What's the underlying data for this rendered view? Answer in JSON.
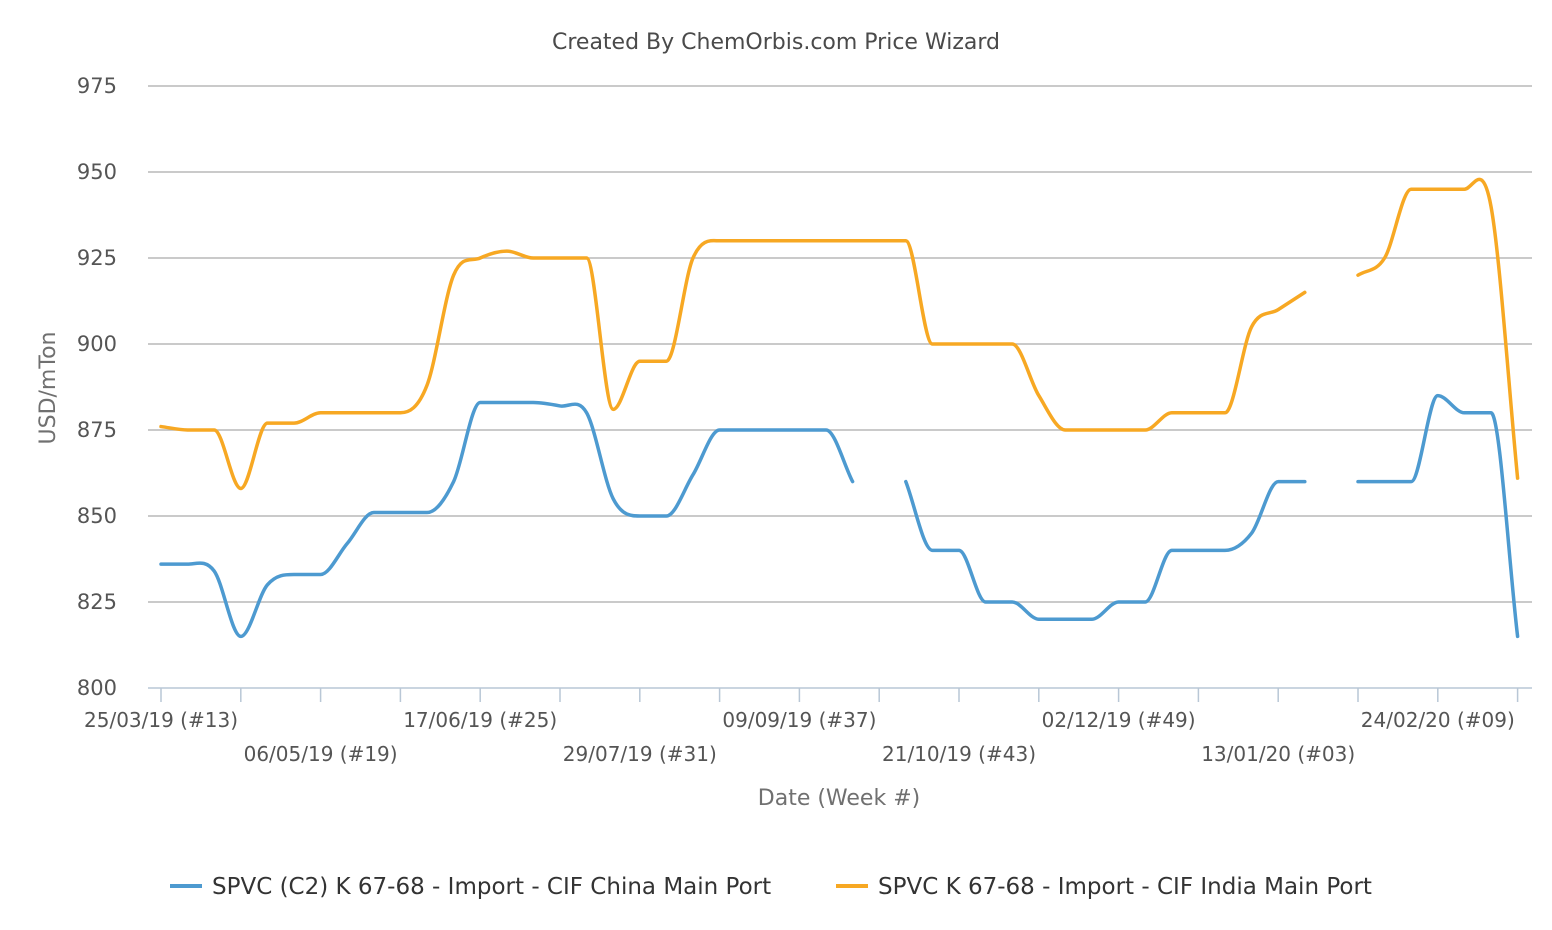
{
  "chart_data": {
    "type": "line",
    "title": "Created By ChemOrbis.com Price Wizard",
    "xlabel": "Date (Week #)",
    "ylabel": "USD/mTon",
    "ylim": [
      800,
      975
    ],
    "yticks": [
      800,
      825,
      850,
      875,
      900,
      925,
      950,
      975
    ],
    "grid": true,
    "legend_position": "bottom",
    "x_unit": "weeks starting 25/03/19 (#13)",
    "x_tick_labels": [
      {
        "week": 0,
        "label": "25/03/19 (#13)"
      },
      {
        "week": 6,
        "label": "06/05/19 (#19)"
      },
      {
        "week": 12,
        "label": "17/06/19 (#25)"
      },
      {
        "week": 18,
        "label": "29/07/19 (#31)"
      },
      {
        "week": 24,
        "label": "09/09/19 (#37)"
      },
      {
        "week": 30,
        "label": "21/10/19 (#43)"
      },
      {
        "week": 36,
        "label": "02/12/19 (#49)"
      },
      {
        "week": 42,
        "label": "13/01/20 (#03)"
      },
      {
        "week": 48,
        "label": "24/02/20 (#09)"
      }
    ],
    "x_minor_ticks": [
      0,
      3,
      6,
      9,
      12,
      15,
      18,
      21,
      24,
      27,
      30,
      33,
      36,
      39,
      42,
      45,
      48,
      51
    ],
    "x": [
      0,
      1,
      2,
      3,
      4,
      5,
      6,
      7,
      8,
      9,
      10,
      11,
      12,
      13,
      14,
      15,
      16,
      17,
      18,
      19,
      20,
      21,
      22,
      23,
      24,
      25,
      26,
      27,
      28,
      29,
      30,
      31,
      32,
      33,
      34,
      35,
      36,
      37,
      38,
      39,
      40,
      41,
      42,
      43,
      44,
      45,
      46,
      47,
      48,
      49,
      50,
      51
    ],
    "series": [
      {
        "name": "SPVC (C2) K 67-68 - Import - CIF China Main Port",
        "color": "#4d9ad0",
        "values": [
          836,
          836,
          834,
          815,
          830,
          833,
          833,
          842,
          851,
          851,
          851,
          860,
          883,
          883,
          883,
          882,
          880,
          855,
          850,
          850,
          862,
          875,
          875,
          875,
          875,
          875,
          860,
          null,
          860,
          840,
          840,
          825,
          825,
          820,
          820,
          820,
          825,
          825,
          840,
          840,
          840,
          845,
          860,
          860,
          null,
          860,
          860,
          860,
          885,
          880,
          880,
          815
        ]
      },
      {
        "name": "SPVC K 67-68 - Import - CIF India Main Port",
        "color": "#f7a823",
        "values": [
          876,
          875,
          875,
          858,
          877,
          877,
          880,
          880,
          880,
          880,
          888,
          920,
          925,
          927,
          925,
          925,
          925,
          881,
          895,
          895,
          925,
          930,
          930,
          930,
          930,
          930,
          930,
          930,
          930,
          900,
          900,
          900,
          900,
          885,
          875,
          875,
          875,
          875,
          880,
          880,
          880,
          905,
          910,
          915,
          null,
          920,
          925,
          945,
          945,
          945,
          940,
          861
        ]
      }
    ]
  }
}
